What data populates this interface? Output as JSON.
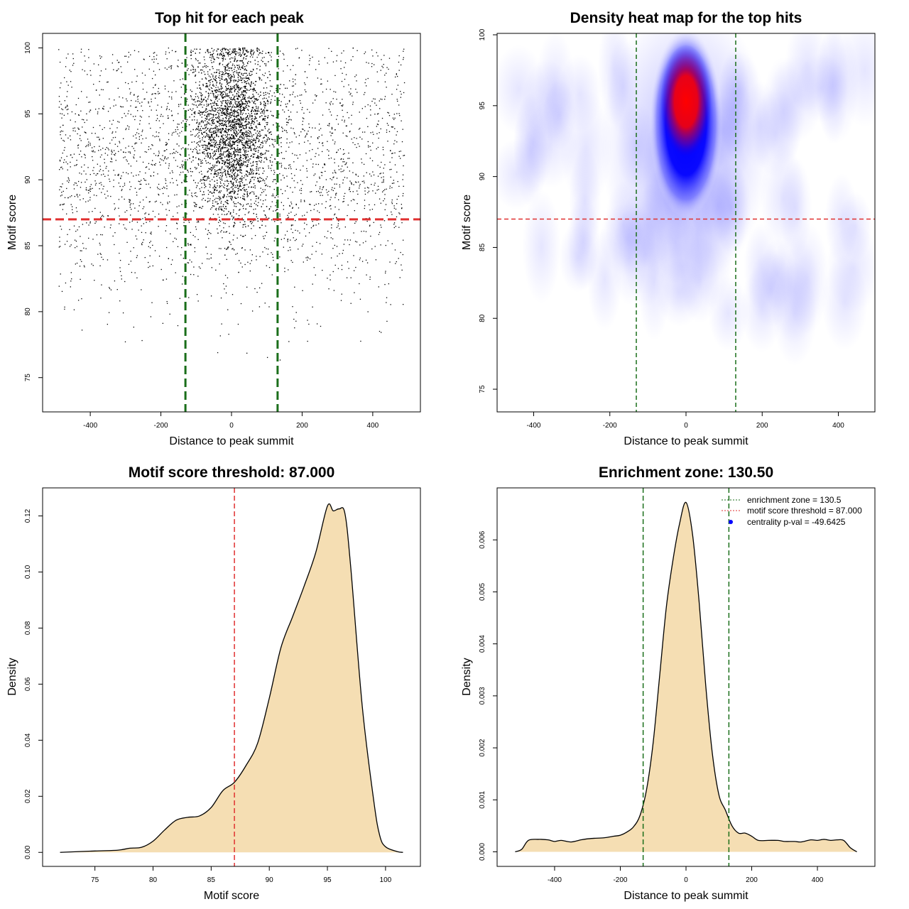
{
  "colors": {
    "threshold_line": "#e03030",
    "zone_line": "#1a6e1a",
    "density_fill": "#f5deb3",
    "points": "#000000",
    "heat_low": "#ffffff",
    "heat_mid": "#0000ff",
    "heat_high": "#ff0000",
    "legend_point": "#0000ff"
  },
  "chart_data": [
    {
      "id": "scatter",
      "type": "scatter",
      "title": "Top hit for each peak",
      "xlabel": "Distance to peak summit",
      "ylabel": "Motif score",
      "xlim": [
        -535,
        535
      ],
      "ylim": [
        72.4,
        101.1
      ],
      "xticks": [
        "-400",
        "-200",
        "0",
        "200",
        "400"
      ],
      "yticks": [
        "75",
        "80",
        "85",
        "90",
        "95",
        "100"
      ],
      "vlines": [
        -130.5,
        130.5
      ],
      "hline": 87.0,
      "point_generation": {
        "background_points": 2600,
        "central_points": 4200,
        "central_sd_distance": 55,
        "central_score_mean": 94,
        "central_score_sd": 3.3,
        "background_score_mean": 91,
        "background_score_sd": 5,
        "score_max": 100,
        "distance_range": [
          -490,
          490
        ]
      }
    },
    {
      "id": "heatmap",
      "type": "heatmap",
      "title": "Density heat map for the top hits",
      "xlabel": "Distance to peak summit",
      "ylabel": "Motif score",
      "xlim": [
        -496,
        496
      ],
      "ylim": [
        73.4,
        100.1
      ],
      "xticks": [
        "-400",
        "-200",
        "0",
        "200",
        "400"
      ],
      "yticks": [
        "75",
        "80",
        "85",
        "90",
        "95",
        "100"
      ],
      "vlines": [
        -130.5,
        130.5
      ],
      "hline": 87.0,
      "hotspot": {
        "x": 0,
        "y": 95.3
      },
      "colors": [
        "white",
        "blue",
        "red"
      ]
    },
    {
      "id": "score_density",
      "type": "area",
      "title": "Motif score threshold: 87.000",
      "xlabel": "Motif score",
      "ylabel": "Density",
      "xlim": [
        70.5,
        103
      ],
      "ylim": [
        -0.005,
        0.13
      ],
      "xticks": [
        "75",
        "80",
        "85",
        "90",
        "95",
        "100"
      ],
      "yticks": [
        "0.00",
        "0.02",
        "0.04",
        "0.06",
        "0.08",
        "0.10",
        "0.12"
      ],
      "vline": 87.0,
      "x": [
        72.0,
        75.0,
        77.0,
        78.0,
        79.0,
        80.0,
        81.0,
        82.0,
        83.0,
        84.0,
        85.0,
        86.0,
        87.0,
        88.0,
        89.0,
        90.0,
        91.0,
        92.0,
        93.0,
        94.0,
        95.0,
        95.5,
        96.0,
        96.5,
        97.0,
        98.0,
        99.0,
        99.5,
        100.0,
        101.0,
        101.5
      ],
      "y": [
        0.0,
        0.0005,
        0.0008,
        0.0015,
        0.0018,
        0.004,
        0.008,
        0.0115,
        0.0125,
        0.013,
        0.016,
        0.022,
        0.025,
        0.031,
        0.039,
        0.055,
        0.073,
        0.084,
        0.095,
        0.107,
        0.1235,
        0.1218,
        0.1225,
        0.121,
        0.102,
        0.052,
        0.018,
        0.006,
        0.002,
        0.0003,
        0.0
      ]
    },
    {
      "id": "distance_density",
      "type": "area",
      "title": "Enrichment zone: 130.50",
      "xlabel": "Distance to peak summit",
      "ylabel": "Density",
      "xlim": [
        -575,
        575
      ],
      "ylim": [
        -0.00028,
        0.007
      ],
      "xticks": [
        "-400",
        "-200",
        "0",
        "200",
        "400"
      ],
      "yticks": [
        "0.000",
        "0.001",
        "0.002",
        "0.003",
        "0.004",
        "0.005",
        "0.006"
      ],
      "vlines": [
        -130.5,
        130.5
      ],
      "x": [
        -520,
        -500,
        -480,
        -450,
        -420,
        -400,
        -380,
        -350,
        -320,
        -300,
        -280,
        -250,
        -220,
        -200,
        -180,
        -160,
        -140,
        -120,
        -100,
        -80,
        -60,
        -40,
        -20,
        0,
        20,
        40,
        60,
        80,
        100,
        120,
        140,
        160,
        180,
        200,
        220,
        250,
        280,
        300,
        330,
        350,
        380,
        400,
        420,
        440,
        460,
        480,
        500,
        520
      ],
      "y": [
        0.0,
        5e-05,
        0.00022,
        0.00024,
        0.00023,
        0.0002,
        0.00022,
        0.00019,
        0.00023,
        0.00025,
        0.00026,
        0.00027,
        0.0003,
        0.00032,
        0.00038,
        0.00048,
        0.0007,
        0.0012,
        0.0021,
        0.0034,
        0.0047,
        0.0056,
        0.0063,
        0.00672,
        0.0061,
        0.0048,
        0.0032,
        0.0019,
        0.0011,
        0.0008,
        0.0005,
        0.00036,
        0.00036,
        0.0003,
        0.00022,
        0.00022,
        0.00022,
        0.0002,
        0.0002,
        0.00019,
        0.00023,
        0.00022,
        0.00024,
        0.00022,
        0.00023,
        0.00022,
        8e-05,
        0.0
      ],
      "legend": {
        "entries": [
          {
            "label": "enrichment zone = 130.5",
            "style": "zone_line"
          },
          {
            "label": "motif score threshold = 87.000",
            "style": "threshold_line"
          },
          {
            "label": "centrality p-val = -49.6425",
            "style": "point"
          }
        ],
        "placement": "top-right"
      }
    }
  ]
}
